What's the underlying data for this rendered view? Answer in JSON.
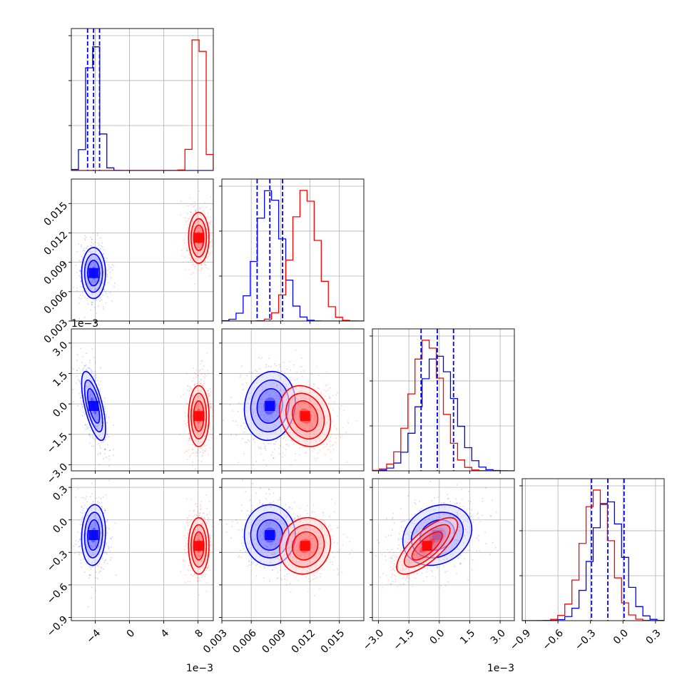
{
  "chart_data": {
    "type": "corner",
    "grid": true,
    "colors": {
      "blue": "#0000ff",
      "red": "#ff0000"
    },
    "series": [
      {
        "color": "blue",
        "means": [
          -0.0042,
          0.0079,
          -0.0001,
          -0.14
        ],
        "sds": [
          0.0007,
          0.0013,
          0.00085,
          0.14
        ],
        "corr_pairs": [
          {
            "i": 1,
            "j": 0,
            "r": 0.0
          },
          {
            "i": 2,
            "j": 0,
            "r": -0.65
          },
          {
            "i": 2,
            "j": 1,
            "r": 0.1
          },
          {
            "i": 3,
            "j": 0,
            "r": 0.1
          },
          {
            "i": 3,
            "j": 1,
            "r": 0.0
          },
          {
            "i": 3,
            "j": 2,
            "r": 0.2
          }
        ],
        "quantiles_16_50_84": [
          [
            -0.0049,
            -0.0042,
            -0.0035
          ],
          [
            0.0066,
            0.0079,
            0.0092
          ],
          [
            -0.0009,
            -0.0001,
            0.0007
          ],
          [
            -0.29,
            -0.14,
            0.01
          ]
        ]
      },
      {
        "color": "red",
        "means": [
          0.0081,
          0.0115,
          -0.0006,
          -0.24
        ],
        "sds": [
          0.0006,
          0.0013,
          0.00075,
          0.13
        ],
        "corr_pairs": [
          {
            "i": 1,
            "j": 0,
            "r": 0.0
          },
          {
            "i": 2,
            "j": 0,
            "r": 0.0
          },
          {
            "i": 2,
            "j": 1,
            "r": -0.2
          },
          {
            "i": 3,
            "j": 0,
            "r": 0.0
          },
          {
            "i": 3,
            "j": 1,
            "r": 0.1
          },
          {
            "i": 3,
            "j": 2,
            "r": 0.75
          }
        ]
      }
    ],
    "axes": [
      {
        "range": [
          -0.0068,
          0.0098
        ],
        "ticks": [
          -0.004,
          0.0,
          0.004,
          0.008
        ],
        "tick_labels": [
          "−4",
          "0",
          "4",
          "8"
        ],
        "offset_label": "1e−3"
      },
      {
        "range": [
          0.003,
          0.0175
        ],
        "ticks": [
          0.003,
          0.006,
          0.009,
          0.012,
          0.015
        ],
        "tick_labels": [
          "0.003",
          "0.006",
          "0.009",
          "0.012",
          "0.015"
        ],
        "offset_label": ""
      },
      {
        "range": [
          -0.0033,
          0.0037
        ],
        "ticks": [
          -0.003,
          -0.0015,
          0.0,
          0.0015,
          0.003
        ],
        "tick_labels": [
          "−3.0",
          "−1.5",
          "0.0",
          "1.5",
          "3.0"
        ],
        "offset_label": "1e−3"
      },
      {
        "range": [
          -0.93,
          0.38
        ],
        "ticks": [
          -0.9,
          -0.6,
          -0.3,
          0.0,
          0.3
        ],
        "tick_labels": [
          "−0.9",
          "−0.6",
          "−0.3",
          "0.0",
          "0.3"
        ],
        "offset_label": ""
      }
    ]
  }
}
